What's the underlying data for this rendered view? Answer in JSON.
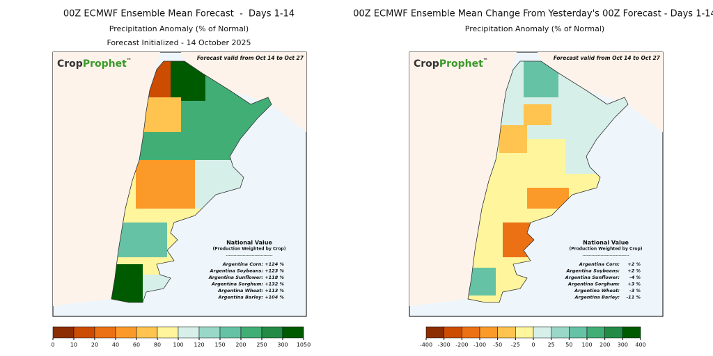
{
  "panels": [
    {
      "title": "00Z ECMWF Ensemble Mean Forecast  -  Days 1-14",
      "subtitle": "Precipitation Anomaly (% of Normal)",
      "subtitle2": "Forecast Initialized - 14 October 2025",
      "logo": [
        "Crop",
        "Prophet",
        "™"
      ],
      "valid": "Forecast valid from Oct 14 to Oct 27",
      "national": {
        "title": "National Value",
        "note": "(Production Weighted by Crop)",
        "divider": "-------------------------------",
        "rows": [
          {
            "label": "Argentina Corn:",
            "value": "+124 %"
          },
          {
            "label": "Argentina Soybeans:",
            "value": "+123 %"
          },
          {
            "label": "Argentina Sunflower:",
            "value": "+118 %"
          },
          {
            "label": "Argentina Sorghum:",
            "value": "+132 %"
          },
          {
            "label": "Argentina Wheat:",
            "value": "+113 %"
          },
          {
            "label": "Argentina Barley:",
            "value": "+104 %"
          }
        ]
      },
      "colorbar": {
        "colors": [
          "#8c2d04",
          "#cc4c02",
          "#ec7014",
          "#fb9a29",
          "#fec44f",
          "#fff59d",
          "#d6efe9",
          "#99d8c9",
          "#66c2a4",
          "#41ae76",
          "#238b45",
          "#005a00"
        ],
        "ticks": [
          0,
          10,
          20,
          40,
          60,
          80,
          100,
          120,
          150,
          200,
          250,
          300,
          1050
        ]
      }
    },
    {
      "title": "00Z ECMWF Ensemble Mean Change From Yesterday's 00Z Forecast - Days 1-14",
      "subtitle": "Precipitation Anomaly (% of Normal)",
      "logo": [
        "Crop",
        "Prophet",
        "™"
      ],
      "valid": "Forecast valid from Oct 14 to Oct 27",
      "national": {
        "title": "National Value",
        "note": "(Production Weighted by Crop)",
        "divider": "-------------------------------",
        "rows": [
          {
            "label": "Argentina Corn:",
            "value": "+2 %"
          },
          {
            "label": "Argentina Soybeans:",
            "value": "+2 %"
          },
          {
            "label": "Argentina Sunflower:",
            "value": "-4 %"
          },
          {
            "label": "Argentina Sorghum:",
            "value": "+3 %"
          },
          {
            "label": "Argentina Wheat:",
            "value": "-3 %"
          },
          {
            "label": "Argentina Barley:",
            "value": "-11 %"
          }
        ]
      },
      "colorbar": {
        "colors": [
          "#8c2d04",
          "#cc4c02",
          "#ec7014",
          "#fb9a29",
          "#fec44f",
          "#fff59d",
          "#d6efe9",
          "#99d8c9",
          "#66c2a4",
          "#41ae76",
          "#238b45",
          "#005a00"
        ],
        "ticks": [
          -400,
          -300,
          -200,
          -100,
          -50,
          -25,
          0,
          25,
          50,
          100,
          200,
          300,
          400
        ]
      }
    }
  ]
}
